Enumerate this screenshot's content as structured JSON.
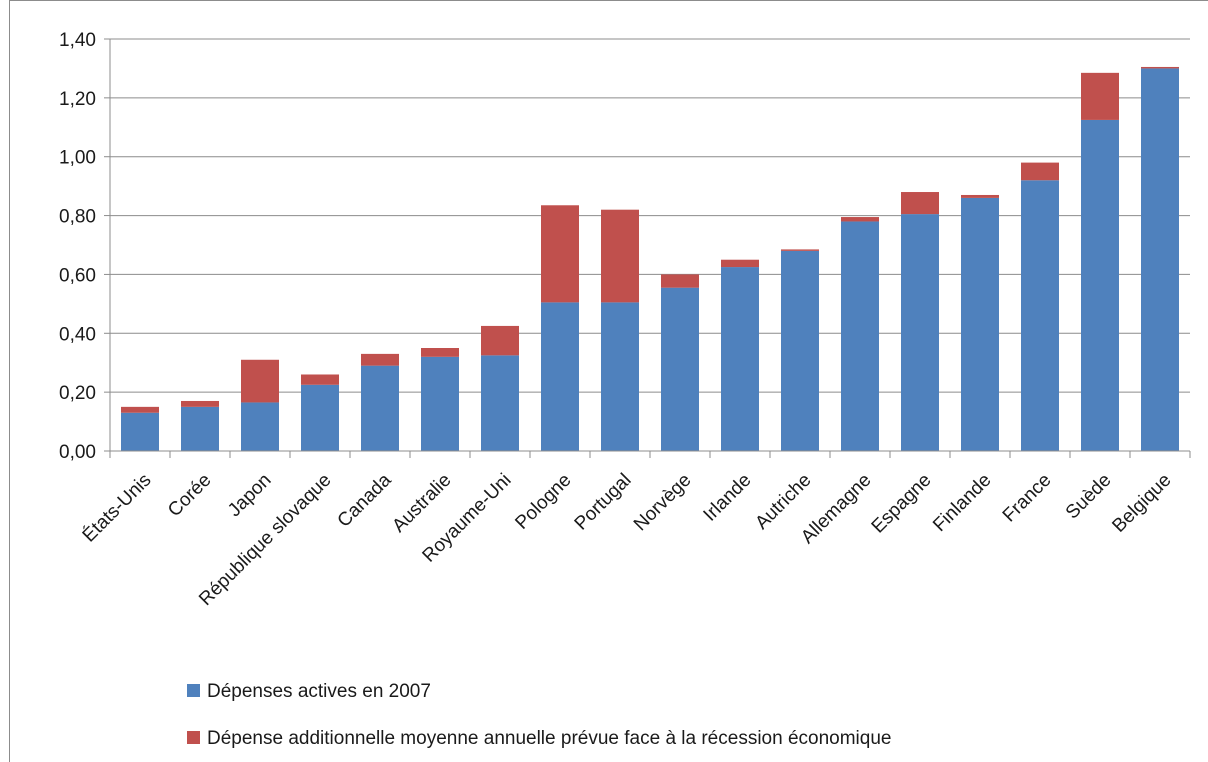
{
  "chart_data": {
    "type": "bar",
    "stacked": true,
    "title": "",
    "xlabel": "",
    "ylabel": "",
    "ylim": [
      0,
      1.4
    ],
    "yticks": [
      "0,00",
      "0,20",
      "0,40",
      "0,60",
      "0,80",
      "1,00",
      "1,20",
      "1,40"
    ],
    "grid": true,
    "legend_position": "bottom",
    "categories": [
      "États-Unis",
      "Corée",
      "Japon",
      "République slovaque",
      "Canada",
      "Australie",
      "Royaume-Uni",
      "Pologne",
      "Portugal",
      "Norvège",
      "Irlande",
      "Autriche",
      "Allemagne",
      "Espagne",
      "Finlande",
      "France",
      "Suède",
      "Belgique"
    ],
    "series": [
      {
        "name": "Dépenses actives en 2007",
        "color": "#4f81bd",
        "values": [
          0.13,
          0.15,
          0.165,
          0.225,
          0.29,
          0.32,
          0.325,
          0.505,
          0.505,
          0.555,
          0.625,
          0.68,
          0.78,
          0.805,
          0.86,
          0.92,
          1.125,
          1.3
        ]
      },
      {
        "name": "Dépense additionnelle moyenne annuelle prévue face à la récession économique",
        "color": "#c0504d",
        "values": [
          0.02,
          0.02,
          0.145,
          0.035,
          0.04,
          0.03,
          0.1,
          0.33,
          0.315,
          0.045,
          0.025,
          0.005,
          0.015,
          0.075,
          0.01,
          0.06,
          0.16,
          0.005
        ]
      }
    ]
  }
}
